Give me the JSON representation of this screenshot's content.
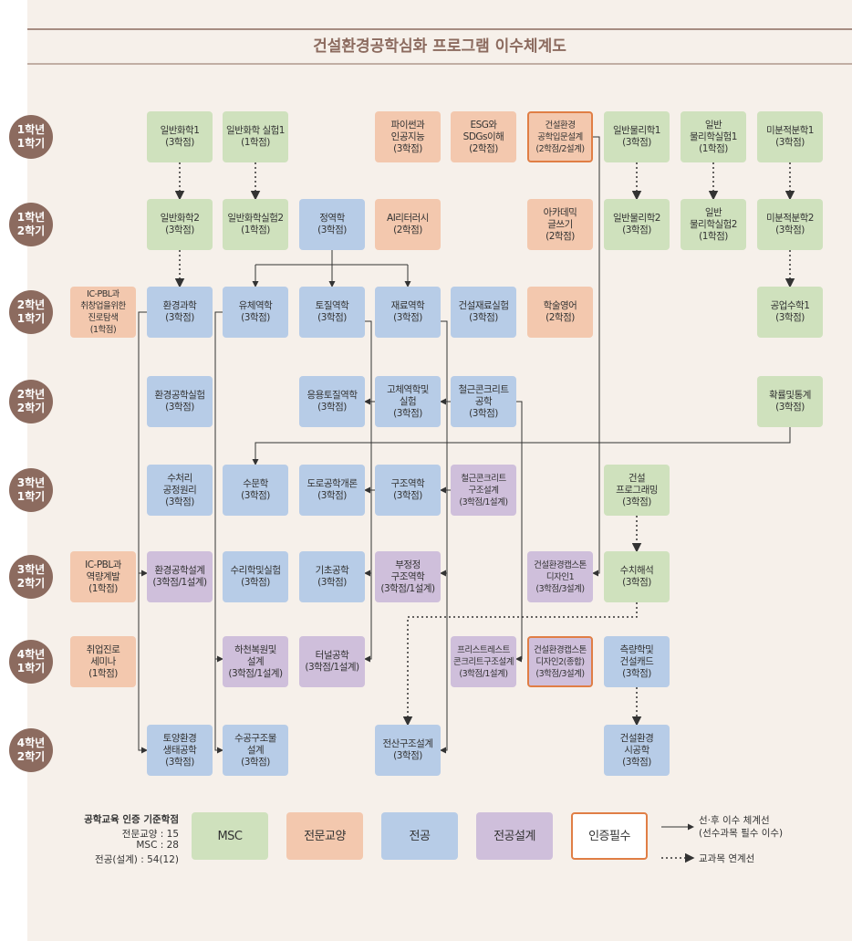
{
  "header": {
    "title": "건설환경공학심화 프로그램 이수체계도"
  },
  "semesters": [
    "1학년\n1학기",
    "1학년\n2학기",
    "2학년\n1학기",
    "2학년\n2학기",
    "3학년\n1학기",
    "3학년\n2학기",
    "4학년\n1학기",
    "4학년\n2학기"
  ],
  "nodes": [
    "일반화학1\n(3학점)",
    "일반화학 실험1\n(1학점)",
    "파이썬과\n인공지능\n(3학점)",
    "ESG와\nSDGs이해\n(2학점)",
    "건설환경\n공학입문설계\n(2학점/2설계)",
    "일반물리학1\n(3학점)",
    "일반\n물리학실험1\n(1학점)",
    "미분적분학1\n(3학점)",
    "일반화학2\n(3학점)",
    "일반화학실험2\n(1학점)",
    "정역학\n(3학점)",
    "AI리터러시\n(2학점)",
    "아카데믹\n글쓰기\n(2학점)",
    "일반물리학2\n(3학점)",
    "일반\n물리학실험2\n(1학점)",
    "미분적분학2\n(3학점)",
    "IC-PBL과\n취창업을위한\n진로탐색\n(1학점)",
    "환경과학\n(3학점)",
    "유체역학\n(3학점)",
    "토질역학\n(3학점)",
    "재료역학\n(3학점)",
    "건설재료실험\n(3학점)",
    "학술영어\n(2학점)",
    "공업수학1\n(3학점)",
    "환경공학실험\n(3학점)",
    "응용토질역학\n(3학점)",
    "고체역학및\n실험\n(3학점)",
    "철근콘크리트\n공학\n(3학점)",
    "확률및통계\n(3학점)",
    "수처리\n공정원리\n(3학점)",
    "수문학\n(3학점)",
    "도로공학개론\n(3학점)",
    "구조역학\n(3학점)",
    "철근콘크리트\n구조설계\n(3학점/1설계)",
    "건설\n프로그래밍\n(3학점)",
    "IC-PBL과\n역량계발\n(1학점)",
    "환경공학설계\n(3학점/1설계)",
    "수리학및실험\n(3학점)",
    "기초공학\n(3학점)",
    "부정정\n구조역학\n(3학점/1설계)",
    "건설환경캡스톤\n디자인1\n(3학점/3설계)",
    "수치해석\n(3학점)",
    "취업진로\n세미나\n(1학점)",
    "하천복원및\n설계\n(3학점/1설계)",
    "터널공학\n(3학점/1설계)",
    "프리스트레스트\n콘크리트구조설계\n(3학점/1설계)",
    "건설환경캡스톤\n디자인2(종합)\n(3학점/3설계)",
    "측량학및\n건설캐드\n(3학점)",
    "토양환경\n생태공학\n(3학점)",
    "수공구조물\n설계\n(3학점)",
    "전산구조설계\n(3학점)",
    "건설환경\n시공학\n(3학점)"
  ],
  "legend": {
    "credits_title": "공학교육 인증 기준학점",
    "credits": [
      "전문교양 : 15",
      "MSC : 28",
      "전공(설계) : 54(12)"
    ],
    "categories": [
      "MSC",
      "전문교양",
      "전공",
      "전공설계",
      "인증필수"
    ],
    "lines": [
      "선·후 이수 체계선\n(선수과목 필수 이수)",
      "교과목 연계선"
    ]
  }
}
